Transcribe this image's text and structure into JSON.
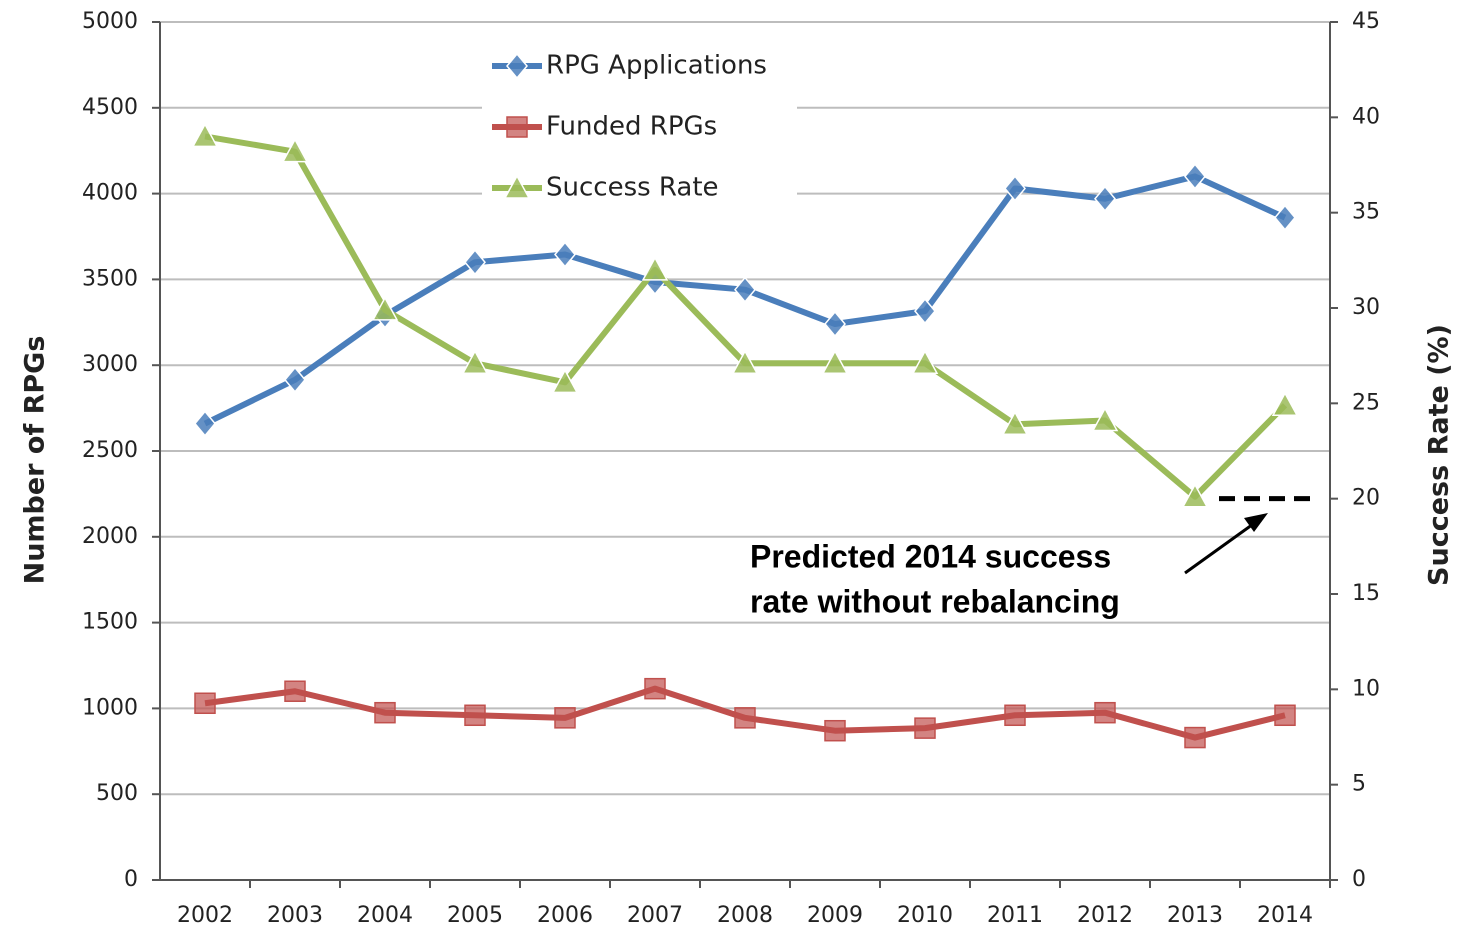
{
  "chart_data": {
    "type": "line",
    "categories": [
      "2002",
      "2003",
      "2004",
      "2005",
      "2006",
      "2007",
      "2008",
      "2009",
      "2010",
      "2011",
      "2012",
      "2013",
      "2014"
    ],
    "series": [
      {
        "name": "RPG Applications",
        "color": "#4a7ebb",
        "marker": "diamond",
        "values": [
          2660,
          2915,
          3290,
          3600,
          3645,
          3485,
          3440,
          3240,
          3315,
          4030,
          3970,
          4100,
          3860
        ]
      },
      {
        "name": "Funded RPGs",
        "color": "#c0504d",
        "marker": "square",
        "values": [
          1030,
          1100,
          975,
          960,
          945,
          1115,
          945,
          870,
          885,
          960,
          975,
          830,
          960
        ]
      },
      {
        "name": "Success Rate",
        "color": "#9bbb59",
        "marker": "triangle",
        "axis": "y2",
        "values": [
          39,
          38.2,
          29.9,
          27.1,
          26.1,
          32,
          27.1,
          27.1,
          27.1,
          23.9,
          24.1,
          20.1,
          24.9
        ]
      }
    ],
    "ylabel": "Number of RPGs",
    "y2label": "Success Rate (%)",
    "ylim": [
      0,
      5000
    ],
    "yticks": [
      0,
      500,
      1000,
      1500,
      2000,
      2500,
      3000,
      3500,
      4000,
      4500,
      5000
    ],
    "y2lim": [
      0,
      45
    ],
    "y2ticks": [
      0,
      5,
      10,
      15,
      20,
      25,
      30,
      35,
      40,
      45
    ],
    "grid": true,
    "legend": "top",
    "annotation": {
      "lines": [
        "Predicted 2014 success",
        "rate without rebalancing"
      ],
      "value": 20
    }
  }
}
